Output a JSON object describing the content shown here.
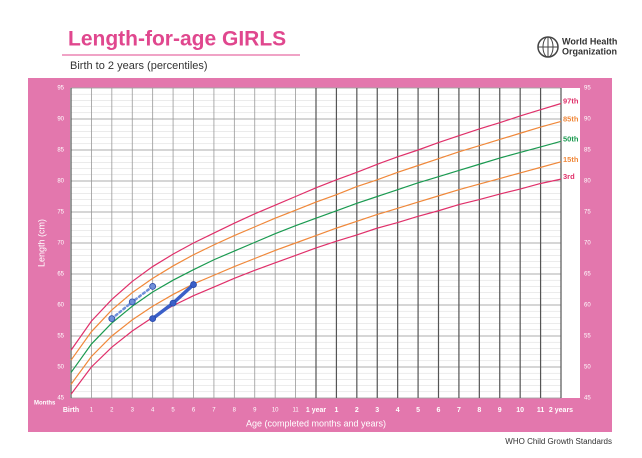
{
  "header": {
    "title": "Length-for-age GIRLS",
    "subtitle": "Birth to 2 years (percentiles)",
    "org_lines": [
      "World Health",
      "Organization"
    ]
  },
  "footer": "WHO Child Growth Standards",
  "chart_data": {
    "type": "line",
    "y_label": "Length (cm)",
    "x_label": "Age (completed months and years)",
    "x_unit_label": "Months",
    "x": [
      0,
      1,
      2,
      3,
      4,
      5,
      6,
      7,
      8,
      9,
      10,
      11,
      12,
      13,
      14,
      15,
      16,
      17,
      18,
      19,
      20,
      21,
      22,
      23,
      24
    ],
    "xlim": [
      0,
      24
    ],
    "xticks": [
      {
        "value": 0,
        "label": "Birth"
      },
      1,
      2,
      3,
      4,
      5,
      6,
      7,
      8,
      9,
      10,
      11,
      {
        "value": 12,
        "label": "1 year"
      },
      {
        "value": 13,
        "label": "1"
      },
      {
        "value": 14,
        "label": "2"
      },
      {
        "value": 15,
        "label": "3"
      },
      {
        "value": 16,
        "label": "4"
      },
      {
        "value": 17,
        "label": "5"
      },
      {
        "value": 18,
        "label": "6"
      },
      {
        "value": 19,
        "label": "7"
      },
      {
        "value": 20,
        "label": "8"
      },
      {
        "value": 21,
        "label": "9"
      },
      {
        "value": 22,
        "label": "10"
      },
      {
        "value": 23,
        "label": "11"
      },
      {
        "value": 24,
        "label": "2 years"
      }
    ],
    "ylim": [
      45,
      95
    ],
    "yticks": [
      45,
      50,
      55,
      60,
      65,
      70,
      75,
      80,
      85,
      90,
      95
    ],
    "grid": true,
    "series": [
      {
        "name": "97th",
        "color": "#e0306a",
        "values": [
          52.7,
          57.4,
          60.9,
          63.8,
          66.2,
          68.2,
          70.0,
          71.6,
          73.2,
          74.7,
          76.1,
          77.5,
          78.9,
          80.2,
          81.4,
          82.7,
          83.9,
          85.0,
          86.2,
          87.3,
          88.4,
          89.4,
          90.5,
          91.5,
          92.5
        ]
      },
      {
        "name": "85th",
        "color": "#f0883a",
        "values": [
          51.1,
          55.7,
          59.2,
          62.0,
          64.3,
          66.3,
          68.1,
          69.7,
          71.2,
          72.6,
          74.0,
          75.3,
          76.6,
          77.8,
          79.1,
          80.2,
          81.4,
          82.5,
          83.6,
          84.7,
          85.7,
          86.7,
          87.7,
          88.7,
          89.6
        ]
      },
      {
        "name": "50th",
        "color": "#1a9a50",
        "values": [
          49.1,
          53.7,
          57.1,
          59.8,
          62.1,
          64.0,
          65.7,
          67.3,
          68.7,
          70.1,
          71.5,
          72.8,
          74.0,
          75.2,
          76.4,
          77.5,
          78.6,
          79.7,
          80.7,
          81.7,
          82.7,
          83.7,
          84.6,
          85.5,
          86.4
        ]
      },
      {
        "name": "15th",
        "color": "#f0883a",
        "values": [
          47.2,
          51.7,
          55.0,
          57.6,
          59.8,
          61.7,
          63.4,
          64.8,
          66.2,
          67.5,
          68.8,
          70.0,
          71.2,
          72.4,
          73.5,
          74.6,
          75.6,
          76.6,
          77.6,
          78.6,
          79.5,
          80.4,
          81.3,
          82.2,
          83.1
        ]
      },
      {
        "name": "3rd",
        "color": "#e0306a",
        "values": [
          45.6,
          50.0,
          53.2,
          55.8,
          58.0,
          59.9,
          61.5,
          62.9,
          64.3,
          65.6,
          66.8,
          68.0,
          69.2,
          70.3,
          71.3,
          72.4,
          73.3,
          74.3,
          75.2,
          76.2,
          77.0,
          77.9,
          78.7,
          79.6,
          80.3
        ]
      }
    ],
    "measurements": [
      {
        "color": "#6f8fd8",
        "style": "dotted",
        "x": [
          2,
          3,
          4
        ],
        "values": [
          57.8,
          60.5,
          63.0
        ]
      },
      {
        "color": "#3a5fc8",
        "style": "solid",
        "x": [
          4,
          5,
          6
        ],
        "values": [
          57.8,
          60.3,
          63.3
        ]
      }
    ]
  }
}
